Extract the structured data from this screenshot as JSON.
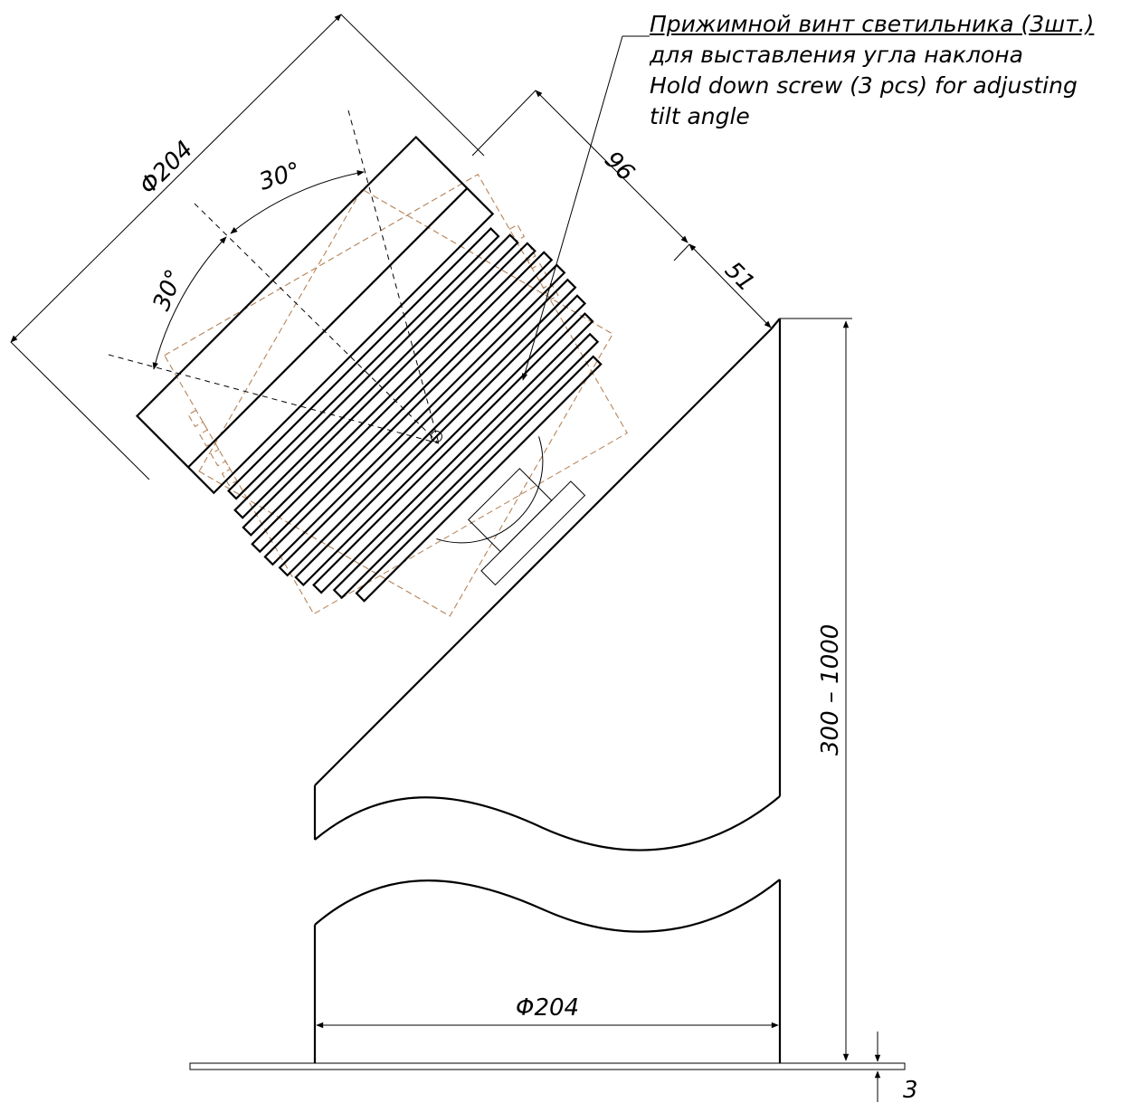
{
  "note": {
    "line1": "Прижимной винт светильника (3шт.)",
    "line2": "для выставления угла наклона",
    "line3": "Hold down screw (3 pcs) for adjusting",
    "line4": "tilt angle"
  },
  "dimensions": {
    "lamp_diameter": "Φ204",
    "angle_upper": "30°",
    "angle_lower": "30°",
    "dim_96": "96",
    "dim_51": "51",
    "height": "300 – 1000",
    "base_diameter": "Φ204",
    "base_thickness": "3"
  },
  "colors": {
    "line": "#000000",
    "hidden_outline": "#b5845a"
  }
}
